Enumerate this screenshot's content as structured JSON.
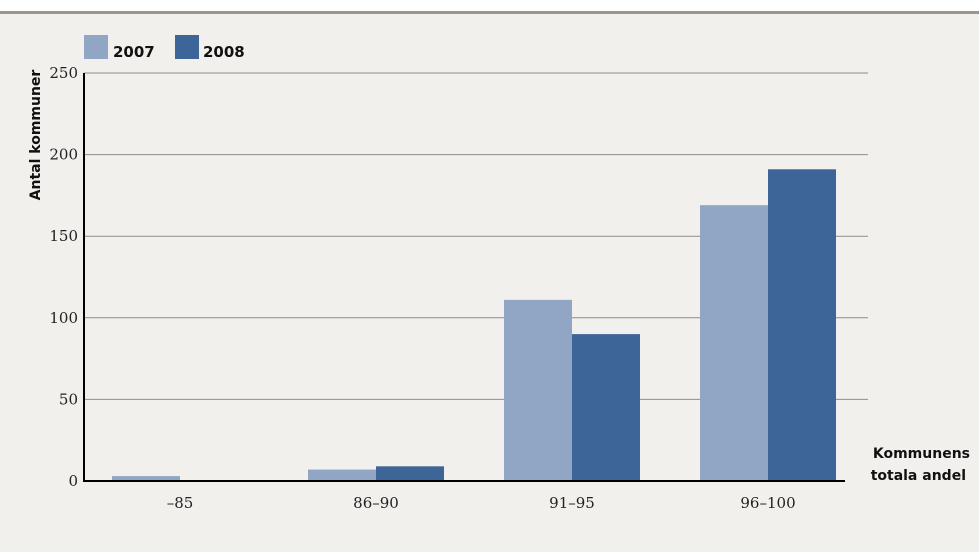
{
  "header": {
    "clipped_title": ""
  },
  "chart_data": {
    "type": "bar",
    "categories": [
      "–85",
      "86–90",
      "91–95",
      "96–100"
    ],
    "series": [
      {
        "name": "2007",
        "values": [
          3,
          7,
          111,
          169
        ],
        "color": "#91a5c5"
      },
      {
        "name": "2008",
        "values": [
          0,
          9,
          90,
          191
        ],
        "color": "#3d6597"
      }
    ],
    "ylabel": "Antal kommuner",
    "xlabel": [
      "Kommunens",
      "totala andel"
    ],
    "ylim": [
      0,
      250
    ],
    "yticks": [
      0,
      50,
      100,
      150,
      200,
      250
    ],
    "grid": true,
    "legend": "top-left"
  }
}
